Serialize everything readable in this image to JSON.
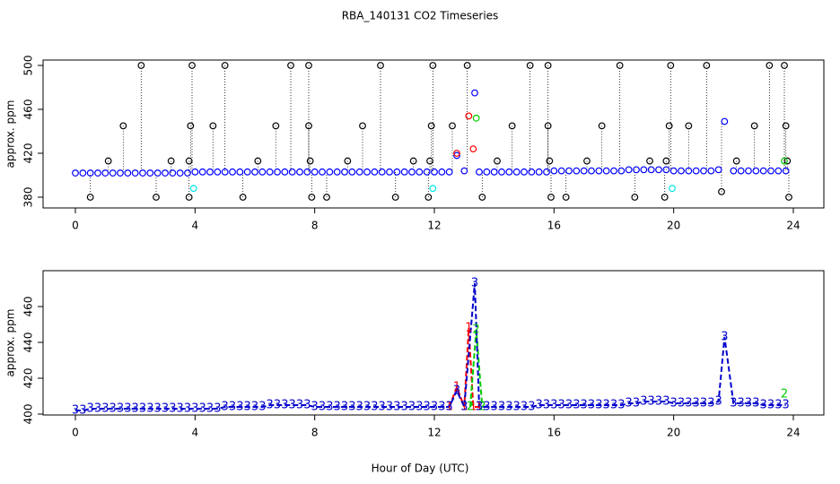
{
  "title": "RBA_140131  CO2 Timeseries",
  "xlabel": "Hour of Day (UTC)",
  "chart_data": [
    {
      "type": "scatter",
      "ylabel": "approx. ppm",
      "xlim": [
        -1.08,
        25.02
      ],
      "xticks": [
        0,
        4,
        8,
        12,
        16,
        20,
        24
      ],
      "ylim": [
        370.2,
        504.9
      ],
      "yticks": [
        380,
        420,
        460,
        500
      ],
      "series": [
        {
          "color": "#000000",
          "drop_lines": true,
          "x": [
            0.5,
            1.1,
            1.6,
            2.2,
            2.7,
            3.2,
            3.8,
            3.8,
            3.85,
            3.9,
            4.6,
            5.0,
            5.6,
            6.1,
            6.7,
            7.2,
            7.8,
            7.8,
            7.85,
            7.9,
            8.4,
            9.1,
            9.6,
            10.2,
            10.7,
            11.3,
            11.8,
            11.85,
            11.9,
            11.95,
            12.6,
            13.1,
            13.6,
            14.1,
            14.6,
            15.2,
            15.8,
            15.8,
            15.85,
            15.9,
            16.4,
            17.1,
            17.6,
            18.2,
            18.7,
            19.2,
            19.7,
            19.75,
            19.85,
            19.9,
            20.5,
            21.1,
            21.6,
            22.1,
            22.7,
            23.2,
            23.7,
            23.75,
            23.8,
            23.85
          ],
          "values": [
            380,
            413,
            445,
            500,
            380,
            413,
            380,
            413,
            445,
            500,
            445,
            500,
            380,
            413,
            445,
            500,
            500,
            445,
            413,
            380,
            380,
            413,
            445,
            500,
            380,
            413,
            380,
            413,
            445,
            500,
            445,
            500,
            380,
            413,
            445,
            500,
            500,
            445,
            413,
            380,
            380,
            413,
            445,
            500,
            380,
            413,
            380,
            413,
            445,
            500,
            445,
            500,
            385,
            413,
            445,
            500,
            500,
            445,
            413,
            380
          ]
        },
        {
          "color": "#0000ff",
          "x": [
            0,
            0.25,
            0.5,
            0.75,
            1,
            1.25,
            1.5,
            1.75,
            2,
            2.25,
            2.5,
            2.75,
            3,
            3.25,
            3.5,
            3.75,
            4,
            4.25,
            4.5,
            4.75,
            5,
            5.25,
            5.5,
            5.75,
            6,
            6.25,
            6.5,
            6.75,
            7,
            7.25,
            7.5,
            7.75,
            8,
            8.25,
            8.5,
            8.75,
            9,
            9.25,
            9.5,
            9.75,
            10,
            10.25,
            10.5,
            10.75,
            11,
            11.25,
            11.5,
            11.75,
            12,
            12.25,
            12.5,
            12.75,
            13,
            13.35,
            13.5,
            13.75,
            14,
            14.25,
            14.5,
            14.75,
            15,
            15.25,
            15.5,
            15.75,
            16,
            16.25,
            16.5,
            16.75,
            17,
            17.25,
            17.5,
            17.75,
            18,
            18.25,
            18.5,
            18.75,
            19,
            19.25,
            19.5,
            19.75,
            20,
            20.25,
            20.5,
            20.75,
            21,
            21.25,
            21.5,
            21.7,
            22,
            22.25,
            22.5,
            22.75,
            23,
            23.25,
            23.5,
            23.75
          ],
          "values": [
            402,
            402,
            402,
            402,
            402,
            402,
            402,
            402,
            402,
            402,
            402,
            402,
            402,
            402,
            402,
            402,
            403,
            403,
            403,
            403,
            403,
            403,
            403,
            403,
            403,
            403,
            403,
            403,
            403,
            403,
            403,
            403,
            403,
            403,
            403,
            403,
            403,
            403,
            403,
            403,
            403,
            403,
            403,
            403,
            403,
            403,
            403,
            403,
            403,
            403,
            403,
            418,
            404,
            475,
            403,
            403,
            403,
            403,
            403,
            403,
            403,
            403,
            403,
            403,
            404,
            404,
            404,
            404,
            404,
            404,
            404,
            404,
            404,
            404,
            405,
            405,
            405,
            405,
            405,
            405,
            404,
            404,
            404,
            404,
            404,
            404,
            405,
            449,
            404,
            404,
            404,
            404,
            404,
            404,
            404,
            404
          ]
        },
        {
          "color": "#ff0000",
          "x": [
            12.75,
            13.15,
            13.3
          ],
          "values": [
            420,
            454,
            424
          ]
        },
        {
          "color": "#00cc00",
          "x": [
            13.4,
            23.7
          ],
          "values": [
            452,
            413
          ]
        },
        {
          "color": "#00e5e5",
          "x": [
            3.95,
            11.95,
            19.95
          ],
          "values": [
            388,
            388,
            388
          ]
        }
      ]
    },
    {
      "type": "line",
      "ylabel": "approx. ppm",
      "xlim": [
        -1.08,
        25.02
      ],
      "xticks": [
        0,
        4,
        8,
        12,
        16,
        20,
        24
      ],
      "ylim": [
        399.5,
        480
      ],
      "yticks": [
        400,
        420,
        440,
        460
      ],
      "series": [
        {
          "color": "#ff0000",
          "marker": "1",
          "x": [
            12.5,
            12.75,
            13.0,
            13.15,
            13.3,
            13.5
          ],
          "values": [
            404,
            415,
            404,
            448,
            404,
            404
          ]
        },
        {
          "color": "#00cc00",
          "marker": "2",
          "x": [
            13.2,
            13.4,
            13.6,
            23.5,
            23.7
          ],
          "values": [
            404,
            447,
            404,
            null,
            411
          ]
        },
        {
          "color": "#0000cc",
          "marker": "3",
          "x": [
            0,
            0.25,
            0.5,
            0.75,
            1,
            1.25,
            1.5,
            1.75,
            2,
            2.25,
            2.5,
            2.75,
            3,
            3.25,
            3.5,
            3.75,
            4,
            4.25,
            4.5,
            4.75,
            5,
            5.25,
            5.5,
            5.75,
            6,
            6.25,
            6.5,
            6.75,
            7,
            7.25,
            7.5,
            7.75,
            8,
            8.25,
            8.5,
            8.75,
            9,
            9.25,
            9.5,
            9.75,
            10,
            10.25,
            10.5,
            10.75,
            11,
            11.25,
            11.5,
            11.75,
            12,
            12.25,
            12.5,
            12.75,
            13,
            13.35,
            13.5,
            13.75,
            14,
            14.25,
            14.5,
            14.75,
            15,
            15.25,
            15.5,
            15.75,
            16,
            16.25,
            16.5,
            16.75,
            17,
            17.25,
            17.5,
            17.75,
            18,
            18.25,
            18.5,
            18.75,
            19,
            19.25,
            19.5,
            19.75,
            20,
            20.25,
            20.5,
            20.75,
            21,
            21.25,
            21.5,
            21.7,
            22,
            22.25,
            22.5,
            22.75,
            23,
            23.25,
            23.5,
            23.75
          ],
          "values": [
            402,
            402,
            403,
            403,
            403,
            403,
            403,
            403,
            403,
            403,
            403,
            403,
            403,
            403,
            403,
            403,
            403,
            403,
            403,
            403,
            404,
            404,
            404,
            404,
            404,
            404,
            405,
            405,
            405,
            405,
            405,
            405,
            404,
            404,
            404,
            404,
            404,
            404,
            404,
            404,
            404,
            404,
            404,
            404,
            404,
            404,
            404,
            404,
            404,
            404,
            404,
            413,
            404,
            473,
            404,
            404,
            404,
            404,
            404,
            404,
            404,
            404,
            405,
            405,
            405,
            405,
            405,
            405,
            405,
            405,
            405,
            405,
            405,
            405,
            406,
            406,
            407,
            407,
            407,
            407,
            406,
            406,
            406,
            406,
            406,
            406,
            407,
            443,
            406,
            406,
            406,
            406,
            405,
            405,
            405,
            405
          ]
        }
      ]
    }
  ]
}
